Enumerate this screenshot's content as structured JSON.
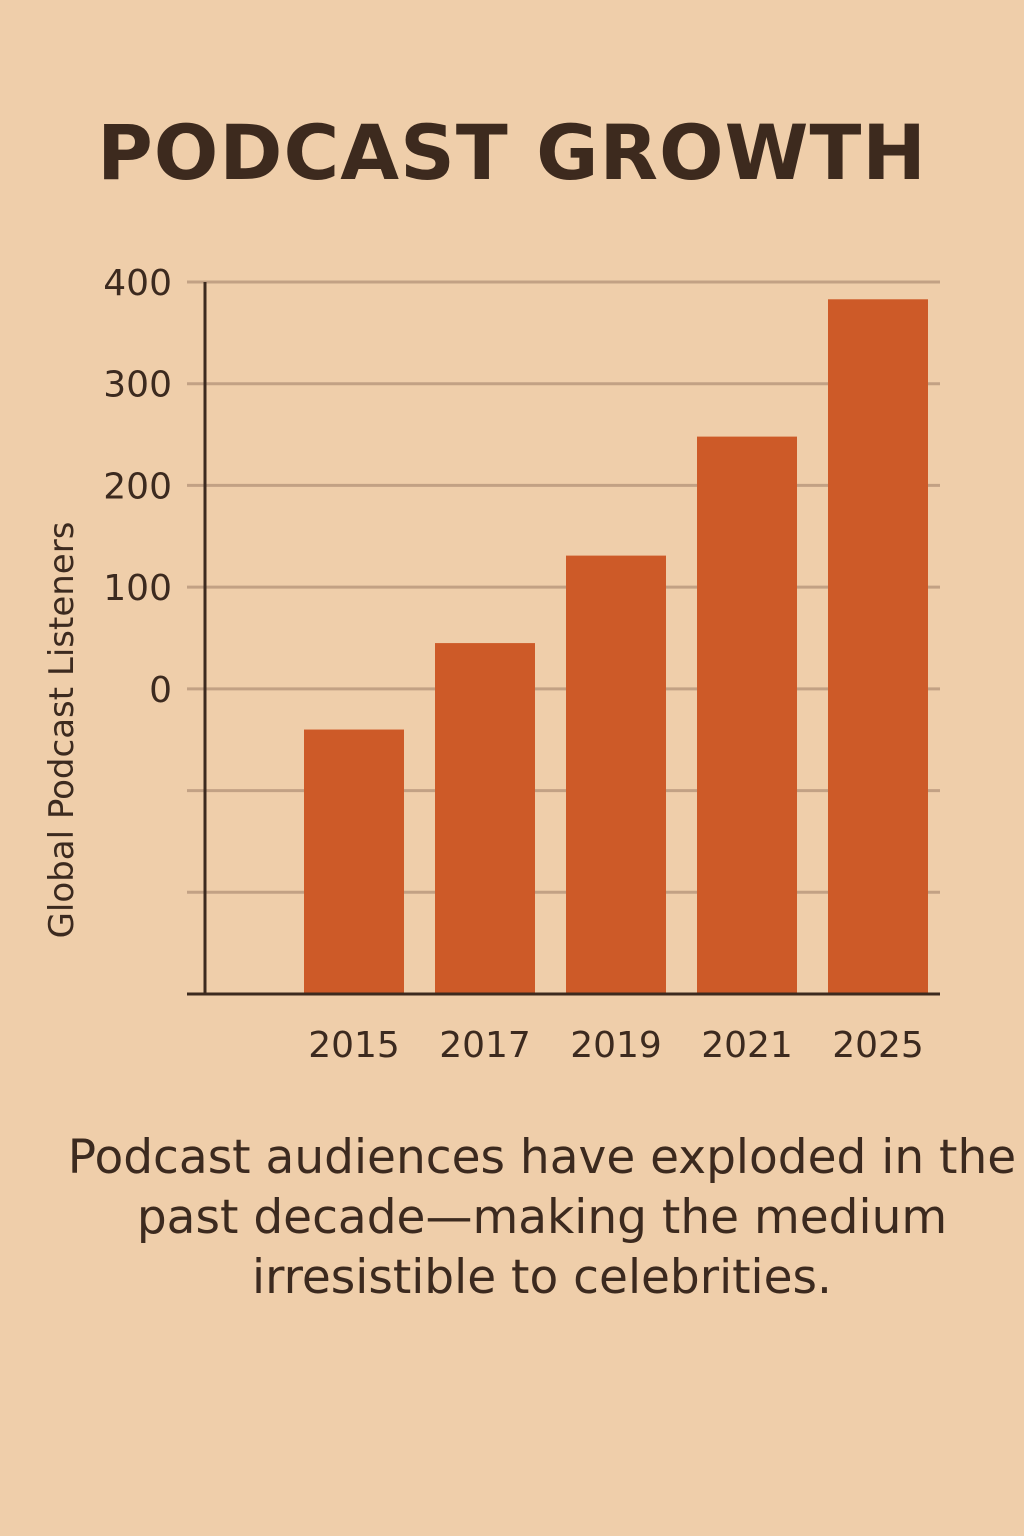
{
  "title": "PODCAST GROWTH",
  "caption": "Podcast audiences have exploded in the past decade—making the medium irresistible to celebrities.",
  "colors": {
    "background": "#efceaa",
    "bar": "#cd5a28",
    "text": "#3c2a1f",
    "grid": "#c2a184",
    "axis": "#3c2a1f"
  },
  "chart_data": {
    "type": "bar",
    "title": "PODCAST GROWTH",
    "ylabel": "Global Podcast Listeners",
    "xlabel": "",
    "categories": [
      "2015",
      "2017",
      "2019",
      "2021",
      "2025"
    ],
    "values": [
      -40,
      45,
      131,
      248,
      383
    ],
    "ylim": [
      -300,
      400
    ],
    "yticks": [
      0,
      100,
      200,
      300,
      400
    ],
    "grid": true,
    "legend": "none"
  }
}
